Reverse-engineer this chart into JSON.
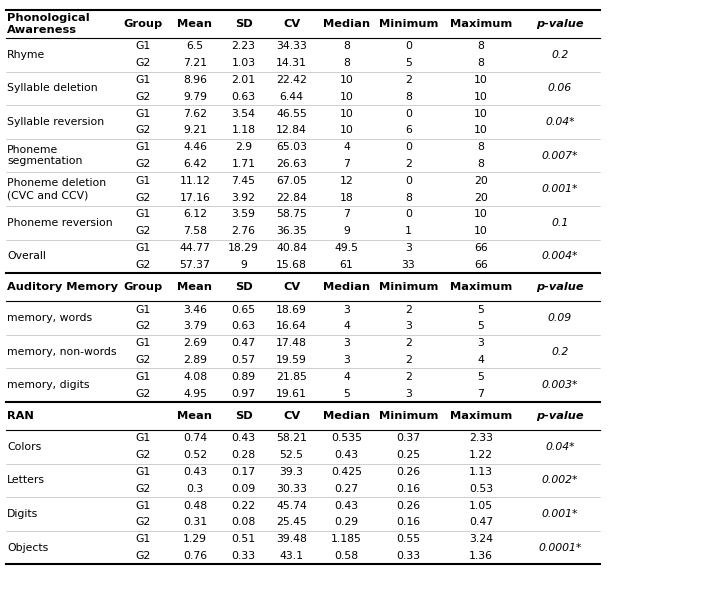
{
  "sections": [
    {
      "header": "Phonological\nAwareness",
      "col_headers": [
        "Group",
        "Mean",
        "SD",
        "CV",
        "Median",
        "Minimum",
        "Maximum",
        "p-value"
      ],
      "rows": [
        {
          "label": "Rhyme",
          "g1": [
            "G1",
            "6.5",
            "2.23",
            "34.33",
            "8",
            "0",
            "8"
          ],
          "g2": [
            "G2",
            "7.21",
            "1.03",
            "14.31",
            "8",
            "5",
            "8"
          ],
          "pvalue": "0.2"
        },
        {
          "label": "Syllable deletion",
          "g1": [
            "G1",
            "8.96",
            "2.01",
            "22.42",
            "10",
            "2",
            "10"
          ],
          "g2": [
            "G2",
            "9.79",
            "0.63",
            "6.44",
            "10",
            "8",
            "10"
          ],
          "pvalue": "0.06"
        },
        {
          "label": "Syllable reversion",
          "g1": [
            "G1",
            "7.62",
            "3.54",
            "46.55",
            "10",
            "0",
            "10"
          ],
          "g2": [
            "G2",
            "9.21",
            "1.18",
            "12.84",
            "10",
            "6",
            "10"
          ],
          "pvalue": "0.04*"
        },
        {
          "label": "Phoneme\nsegmentation",
          "g1": [
            "G1",
            "4.46",
            "2.9",
            "65.03",
            "4",
            "0",
            "8"
          ],
          "g2": [
            "G2",
            "6.42",
            "1.71",
            "26.63",
            "7",
            "2",
            "8"
          ],
          "pvalue": "0.007*"
        },
        {
          "label": "Phoneme deletion\n(CVC and CCV)",
          "g1": [
            "G1",
            "11.12",
            "7.45",
            "67.05",
            "12",
            "0",
            "20"
          ],
          "g2": [
            "G2",
            "17.16",
            "3.92",
            "22.84",
            "18",
            "8",
            "20"
          ],
          "pvalue": "0.001*"
        },
        {
          "label": "Phoneme reversion",
          "g1": [
            "G1",
            "6.12",
            "3.59",
            "58.75",
            "7",
            "0",
            "10"
          ],
          "g2": [
            "G2",
            "7.58",
            "2.76",
            "36.35",
            "9",
            "1",
            "10"
          ],
          "pvalue": "0.1"
        },
        {
          "label": "Overall",
          "g1": [
            "G1",
            "44.77",
            "18.29",
            "40.84",
            "49.5",
            "3",
            "66"
          ],
          "g2": [
            "G2",
            "57.37",
            "9",
            "15.68",
            "61",
            "33",
            "66"
          ],
          "pvalue": "0.004*"
        }
      ]
    },
    {
      "header": "Auditory Memory",
      "col_headers": [
        "Group",
        "Mean",
        "SD",
        "CV",
        "Median",
        "Minimum",
        "Maximum",
        "p-value"
      ],
      "rows": [
        {
          "label": "memory, words",
          "g1": [
            "G1",
            "3.46",
            "0.65",
            "18.69",
            "3",
            "2",
            "5"
          ],
          "g2": [
            "G2",
            "3.79",
            "0.63",
            "16.64",
            "4",
            "3",
            "5"
          ],
          "pvalue": "0.09"
        },
        {
          "label": "memory, non-words",
          "g1": [
            "G1",
            "2.69",
            "0.47",
            "17.48",
            "3",
            "2",
            "3"
          ],
          "g2": [
            "G2",
            "2.89",
            "0.57",
            "19.59",
            "3",
            "2",
            "4"
          ],
          "pvalue": "0.2"
        },
        {
          "label": "memory, digits",
          "g1": [
            "G1",
            "4.08",
            "0.89",
            "21.85",
            "4",
            "2",
            "5"
          ],
          "g2": [
            "G2",
            "4.95",
            "0.97",
            "19.61",
            "5",
            "3",
            "7"
          ],
          "pvalue": "0.003*"
        }
      ]
    },
    {
      "header": "RAN",
      "col_headers": [
        "",
        "Mean",
        "SD",
        "CV",
        "Median",
        "Minimum",
        "Maximum",
        "p-value"
      ],
      "rows": [
        {
          "label": "Colors",
          "g1": [
            "G1",
            "0.74",
            "0.43",
            "58.21",
            "0.535",
            "0.37",
            "2.33"
          ],
          "g2": [
            "G2",
            "0.52",
            "0.28",
            "52.5",
            "0.43",
            "0.25",
            "1.22"
          ],
          "pvalue": "0.04*"
        },
        {
          "label": "Letters",
          "g1": [
            "G1",
            "0.43",
            "0.17",
            "39.3",
            "0.425",
            "0.26",
            "1.13"
          ],
          "g2": [
            "G2",
            "0.3",
            "0.09",
            "30.33",
            "0.27",
            "0.16",
            "0.53"
          ],
          "pvalue": "0.002*"
        },
        {
          "label": "Digits",
          "g1": [
            "G1",
            "0.48",
            "0.22",
            "45.74",
            "0.43",
            "0.26",
            "1.05"
          ],
          "g2": [
            "G2",
            "0.31",
            "0.08",
            "25.45",
            "0.29",
            "0.16",
            "0.47"
          ],
          "pvalue": "0.001*"
        },
        {
          "label": "Objects",
          "g1": [
            "G1",
            "1.29",
            "0.51",
            "39.48",
            "1.185",
            "0.55",
            "3.24"
          ],
          "g2": [
            "G2",
            "0.76",
            "0.33",
            "43.1",
            "0.58",
            "0.33",
            "1.36"
          ],
          "pvalue": "0.0001*"
        }
      ]
    }
  ],
  "font_size": 7.8,
  "header_font_size": 8.2,
  "background_color": "#ffffff"
}
